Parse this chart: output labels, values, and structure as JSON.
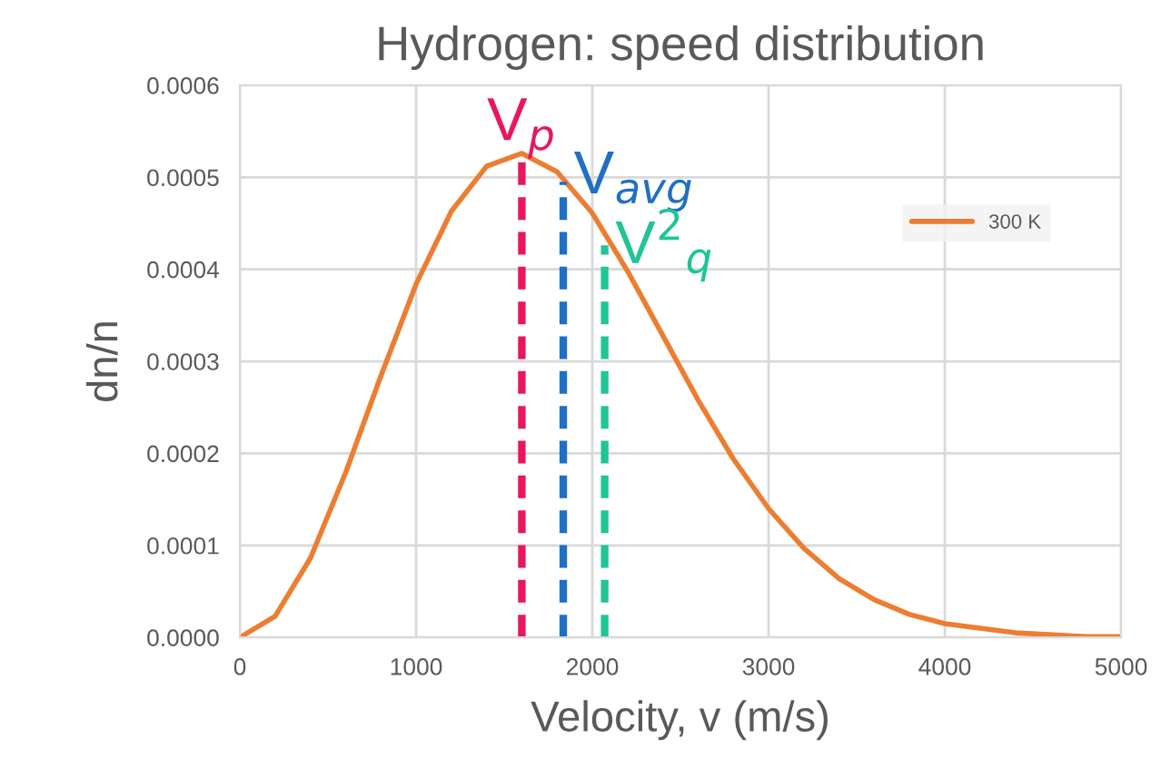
{
  "chart_data": {
    "type": "line",
    "title": "Hydrogen: speed distribution",
    "xlabel": "Velocity, v (m/s)",
    "ylabel": "dn/n",
    "xlim": [
      0,
      5000
    ],
    "xticks": [
      0,
      1000,
      2000,
      3000,
      4000,
      5000
    ],
    "ylim": [
      0,
      0.0006
    ],
    "yticks": [
      {
        "value": 0,
        "label": "0.0000"
      },
      {
        "value": 0.0001,
        "label": "0.0001"
      },
      {
        "value": 0.0002,
        "label": "0.0002"
      },
      {
        "value": 0.0003,
        "label": "0.0003"
      },
      {
        "value": 0.0004,
        "label": "0.0004"
      },
      {
        "value": 0.0005,
        "label": "0.0005"
      },
      {
        "value": 0.0006,
        "label": "0.0006"
      }
    ],
    "grid": true,
    "legend": "top right",
    "series": [
      {
        "name": "300 K",
        "color": "#ed7d31",
        "line_style": "solid",
        "x": [
          0,
          200,
          400,
          600,
          800,
          1000,
          1200,
          1400,
          1600,
          1800,
          2000,
          2200,
          2400,
          2600,
          2800,
          3000,
          3200,
          3400,
          3600,
          3800,
          4000,
          4400,
          4800,
          5000
        ],
        "values": [
          0,
          2.3e-05,
          8.6e-05,
          0.000179,
          0.000284,
          0.000384,
          0.000463,
          0.000512,
          0.000526,
          0.000506,
          0.000461,
          0.000398,
          0.000328,
          0.000258,
          0.000194,
          0.00014,
          9.7e-05,
          6.4e-05,
          4.1e-05,
          2.5e-05,
          1.5e-05,
          5e-06,
          1e-06,
          1e-06
        ]
      },
      {
        "name": "V$_{p}$",
        "color": "#e8175d",
        "line_style": "dashed",
        "x": [
          1600,
          1600
        ],
        "values": [
          0,
          0.00052
        ]
      },
      {
        "name": "V$_{avg}$",
        "color": "#1f6fc5",
        "line_style": "dashed",
        "x": [
          1835,
          1835
        ],
        "values": [
          0,
          0.000495
        ]
      },
      {
        "name": "V$^{2}$$_{q}$",
        "color": "#1fc596",
        "line_style": "dashed",
        "x": [
          2070,
          2070
        ],
        "values": [
          0,
          0.000426
        ]
      }
    ]
  }
}
